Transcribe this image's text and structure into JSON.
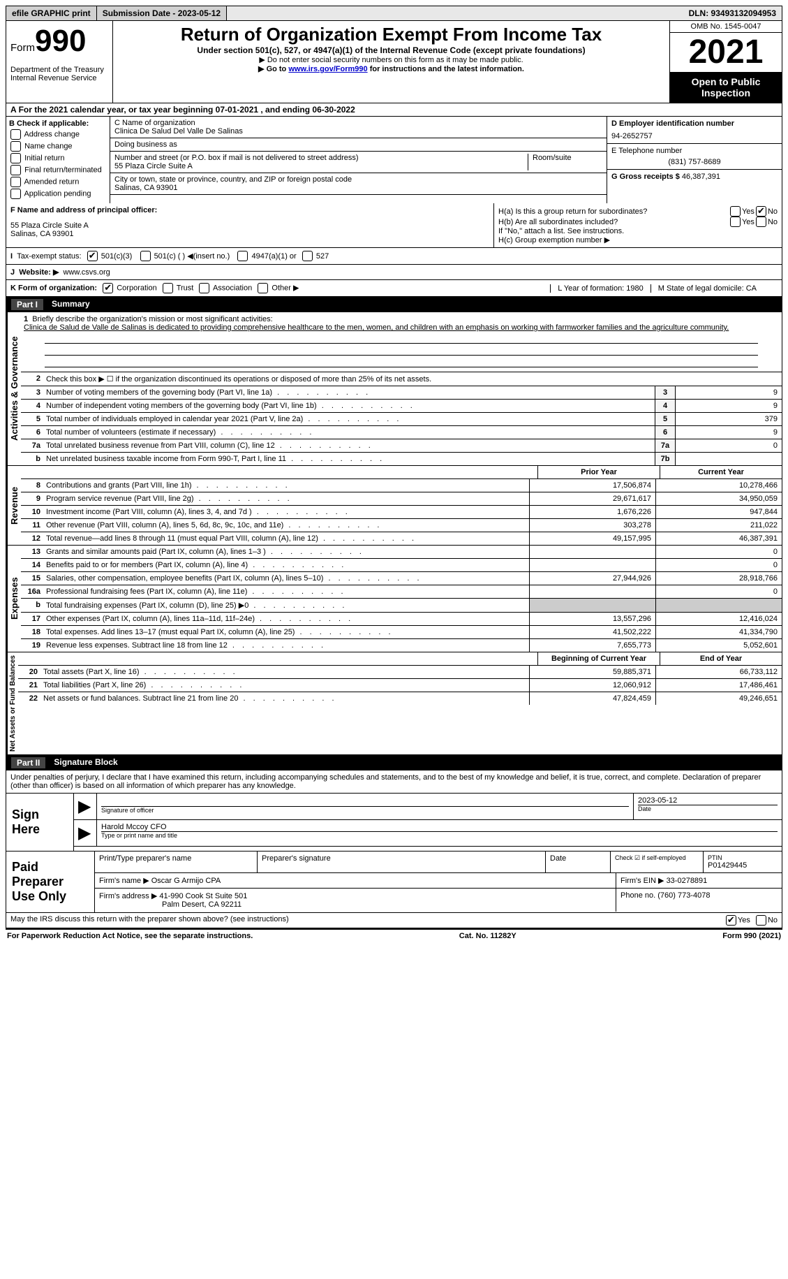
{
  "topbar": {
    "efile": "efile GRAPHIC print",
    "submission": "Submission Date - 2023-05-12",
    "dln": "DLN: 93493132094953"
  },
  "header": {
    "form_prefix": "Form",
    "form_num": "990",
    "dept": "Department of the Treasury\nInternal Revenue Service",
    "title": "Return of Organization Exempt From Income Tax",
    "subtitle": "Under section 501(c), 527, or 4947(a)(1) of the Internal Revenue Code (except private foundations)",
    "note1": "▶ Do not enter social security numbers on this form as it may be made public.",
    "note2_prefix": "▶ Go to ",
    "note2_link": "www.irs.gov/Form990",
    "note2_suffix": " for instructions and the latest information.",
    "omb": "OMB No. 1545-0047",
    "year": "2021",
    "otpi": "Open to Public Inspection"
  },
  "lineA": "For the 2021 calendar year, or tax year beginning 07-01-2021   , and ending 06-30-2022",
  "colB": {
    "label": "B Check if applicable:",
    "opts": [
      "Address change",
      "Name change",
      "Initial return",
      "Final return/terminated",
      "Amended return",
      "Application pending"
    ]
  },
  "colC": {
    "name_label": "C Name of organization",
    "name": "Clinica De Salud Del Valle De Salinas",
    "dba_label": "Doing business as",
    "dba": "",
    "street_label": "Number and street (or P.O. box if mail is not delivered to street address)",
    "room_label": "Room/suite",
    "street": "55 Plaza Circle Suite A",
    "city_label": "City or town, state or province, country, and ZIP or foreign postal code",
    "city": "Salinas, CA  93901"
  },
  "colD": {
    "d_label": "D Employer identification number",
    "d_val": "94-2652757",
    "e_label": "E Telephone number",
    "e_val": "(831) 757-8689",
    "g_label": "G Gross receipts $ ",
    "g_val": "46,387,391"
  },
  "midF": {
    "label": "F Name and address of principal officer:",
    "addr1": "55 Plaza Circle Suite A",
    "addr2": "Salinas, CA  93901"
  },
  "midH": {
    "ha": "H(a)  Is this a group return for subordinates?",
    "hb": "H(b)  Are all subordinates included?",
    "hb_note": "If \"No,\" attach a list. See instructions.",
    "hc": "H(c)  Group exemption number ▶"
  },
  "rowI_label": "Tax-exempt status:",
  "rowI_opts": [
    "501(c)(3)",
    "501(c) (  ) ◀(insert no.)",
    "4947(a)(1) or",
    "527"
  ],
  "rowJ_label": "Website: ▶",
  "rowJ_val": "www.csvs.org",
  "rowK_label": "K Form of organization:",
  "rowK_opts": [
    "Corporation",
    "Trust",
    "Association",
    "Other ▶"
  ],
  "rowK_L": "L Year of formation: 1980",
  "rowK_M": "M State of legal domicile: CA",
  "part1": {
    "label": "Part I",
    "title": "Summary"
  },
  "mission": {
    "prompt": "Briefly describe the organization's mission or most significant activities:",
    "text": "Clinica de Salud de Valle de Salinas is dedicated to providing comprehensive healthcare to the men, women, and children with an emphasis on working with farmworker families and the agriculture community."
  },
  "line2": "Check this box ▶ ☐ if the organization discontinued its operations or disposed of more than 25% of its net assets.",
  "vlabels": {
    "gov": "Activities & Governance",
    "rev": "Revenue",
    "exp": "Expenses",
    "net": "Net Assets or Fund Balances"
  },
  "gov_rows": [
    {
      "n": "3",
      "d": "Number of voting members of the governing body (Part VI, line 1a)",
      "b": "3",
      "v": "9"
    },
    {
      "n": "4",
      "d": "Number of independent voting members of the governing body (Part VI, line 1b)",
      "b": "4",
      "v": "9"
    },
    {
      "n": "5",
      "d": "Total number of individuals employed in calendar year 2021 (Part V, line 2a)",
      "b": "5",
      "v": "379"
    },
    {
      "n": "6",
      "d": "Total number of volunteers (estimate if necessary)",
      "b": "6",
      "v": "9"
    },
    {
      "n": "7a",
      "d": "Total unrelated business revenue from Part VIII, column (C), line 12",
      "b": "7a",
      "v": "0"
    },
    {
      "n": "b",
      "d": "Net unrelated business taxable income from Form 990-T, Part I, line 11",
      "b": "7b",
      "v": ""
    }
  ],
  "col_headers": {
    "prior": "Prior Year",
    "current": "Current Year"
  },
  "rev_rows": [
    {
      "n": "8",
      "d": "Contributions and grants (Part VIII, line 1h)",
      "p": "17,506,874",
      "c": "10,278,466"
    },
    {
      "n": "9",
      "d": "Program service revenue (Part VIII, line 2g)",
      "p": "29,671,617",
      "c": "34,950,059"
    },
    {
      "n": "10",
      "d": "Investment income (Part VIII, column (A), lines 3, 4, and 7d )",
      "p": "1,676,226",
      "c": "947,844"
    },
    {
      "n": "11",
      "d": "Other revenue (Part VIII, column (A), lines 5, 6d, 8c, 9c, 10c, and 11e)",
      "p": "303,278",
      "c": "211,022"
    },
    {
      "n": "12",
      "d": "Total revenue—add lines 8 through 11 (must equal Part VIII, column (A), line 12)",
      "p": "49,157,995",
      "c": "46,387,391"
    }
  ],
  "exp_rows": [
    {
      "n": "13",
      "d": "Grants and similar amounts paid (Part IX, column (A), lines 1–3 )",
      "p": "",
      "c": "0"
    },
    {
      "n": "14",
      "d": "Benefits paid to or for members (Part IX, column (A), line 4)",
      "p": "",
      "c": "0"
    },
    {
      "n": "15",
      "d": "Salaries, other compensation, employee benefits (Part IX, column (A), lines 5–10)",
      "p": "27,944,926",
      "c": "28,918,766"
    },
    {
      "n": "16a",
      "d": "Professional fundraising fees (Part IX, column (A), line 11e)",
      "p": "",
      "c": "0"
    },
    {
      "n": "b",
      "d": "Total fundraising expenses (Part IX, column (D), line 25) ▶0",
      "p": "SHADE",
      "c": "SHADE"
    },
    {
      "n": "17",
      "d": "Other expenses (Part IX, column (A), lines 11a–11d, 11f–24e)",
      "p": "13,557,296",
      "c": "12,416,024"
    },
    {
      "n": "18",
      "d": "Total expenses. Add lines 13–17 (must equal Part IX, column (A), line 25)",
      "p": "41,502,222",
      "c": "41,334,790"
    },
    {
      "n": "19",
      "d": "Revenue less expenses. Subtract line 18 from line 12",
      "p": "7,655,773",
      "c": "5,052,601"
    }
  ],
  "net_headers": {
    "prior": "Beginning of Current Year",
    "current": "End of Year"
  },
  "net_rows": [
    {
      "n": "20",
      "d": "Total assets (Part X, line 16)",
      "p": "59,885,371",
      "c": "66,733,112"
    },
    {
      "n": "21",
      "d": "Total liabilities (Part X, line 26)",
      "p": "12,060,912",
      "c": "17,486,461"
    },
    {
      "n": "22",
      "d": "Net assets or fund balances. Subtract line 21 from line 20",
      "p": "47,824,459",
      "c": "49,246,651"
    }
  ],
  "part2": {
    "label": "Part II",
    "title": "Signature Block"
  },
  "sig_text": "Under penalties of perjury, I declare that I have examined this return, including accompanying schedules and statements, and to the best of my knowledge and belief, it is true, correct, and complete. Declaration of preparer (other than officer) is based on all information of which preparer has any knowledge.",
  "sign_here": "Sign Here",
  "sig": {
    "officer_label": "Signature of officer",
    "date": "2023-05-12",
    "date_label": "Date",
    "name": "Harold Mccoy CFO",
    "name_label": "Type or print name and title"
  },
  "paid_label": "Paid Preparer Use Only",
  "paid": {
    "print_label": "Print/Type preparer's name",
    "sig_label": "Preparer's signature",
    "date_label": "Date",
    "check_label": "Check ☑ if self-employed",
    "ptin_label": "PTIN",
    "ptin": "P01429445",
    "firm_name_label": "Firm's name   ▶",
    "firm_name": "Oscar G Armijo CPA",
    "firm_ein_label": "Firm's EIN ▶",
    "firm_ein": "33-0278891",
    "firm_addr_label": "Firm's address ▶",
    "firm_addr1": "41-990 Cook St Suite 501",
    "firm_addr2": "Palm Desert, CA  92211",
    "phone_label": "Phone no.",
    "phone": "(760) 773-4078"
  },
  "bottom": "May the IRS discuss this return with the preparer shown above? (see instructions)",
  "footer": {
    "left": "For Paperwork Reduction Act Notice, see the separate instructions.",
    "mid": "Cat. No. 11282Y",
    "right": "Form 990 (2021)"
  }
}
